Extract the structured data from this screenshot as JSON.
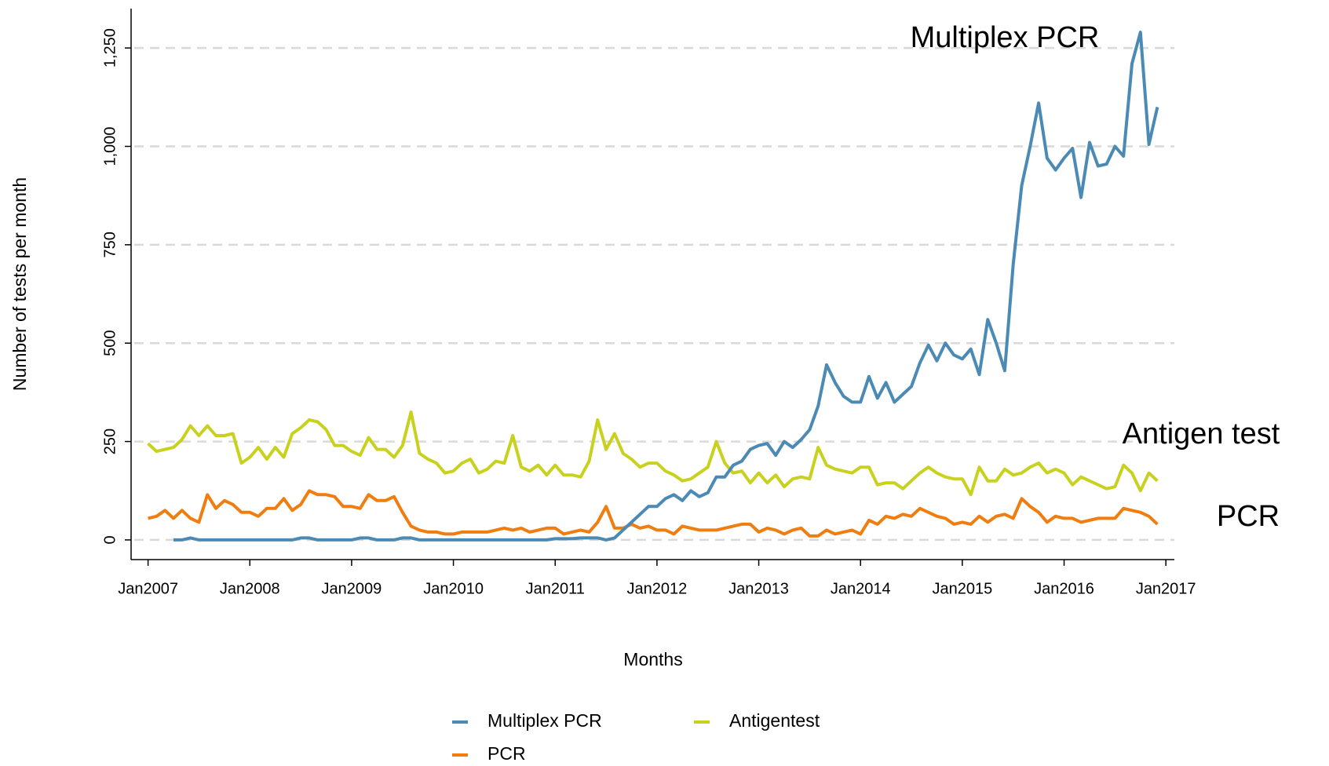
{
  "chart_data": {
    "type": "line",
    "x_label": "Months",
    "y_label": "Number of tests per month",
    "x": [
      "2007-01",
      "2007-02",
      "2007-03",
      "2007-04",
      "2007-05",
      "2007-06",
      "2007-07",
      "2007-08",
      "2007-09",
      "2007-10",
      "2007-11",
      "2007-12",
      "2008-01",
      "2008-02",
      "2008-03",
      "2008-04",
      "2008-05",
      "2008-06",
      "2008-07",
      "2008-08",
      "2008-09",
      "2008-10",
      "2008-11",
      "2008-12",
      "2009-01",
      "2009-02",
      "2009-03",
      "2009-04",
      "2009-05",
      "2009-06",
      "2009-07",
      "2009-08",
      "2009-09",
      "2009-10",
      "2009-11",
      "2009-12",
      "2010-01",
      "2010-02",
      "2010-03",
      "2010-04",
      "2010-05",
      "2010-06",
      "2010-07",
      "2010-08",
      "2010-09",
      "2010-10",
      "2010-11",
      "2010-12",
      "2011-01",
      "2011-02",
      "2011-03",
      "2011-04",
      "2011-05",
      "2011-06",
      "2011-07",
      "2011-08",
      "2011-09",
      "2011-10",
      "2011-11",
      "2011-12",
      "2012-01",
      "2012-02",
      "2012-03",
      "2012-04",
      "2012-05",
      "2012-06",
      "2012-07",
      "2012-08",
      "2012-09",
      "2012-10",
      "2012-11",
      "2012-12",
      "2013-01",
      "2013-02",
      "2013-03",
      "2013-04",
      "2013-05",
      "2013-06",
      "2013-07",
      "2013-08",
      "2013-09",
      "2013-10",
      "2013-11",
      "2013-12",
      "2014-01",
      "2014-02",
      "2014-03",
      "2014-04",
      "2014-05",
      "2014-06",
      "2014-07",
      "2014-08",
      "2014-09",
      "2014-10",
      "2014-11",
      "2014-12",
      "2015-01",
      "2015-02",
      "2015-03",
      "2015-04",
      "2015-05",
      "2015-06",
      "2015-07",
      "2015-08",
      "2015-09",
      "2015-10",
      "2015-11",
      "2015-12",
      "2016-01",
      "2016-02",
      "2016-03",
      "2016-04",
      "2016-05",
      "2016-06",
      "2016-07",
      "2016-08",
      "2016-09",
      "2016-10",
      "2016-11",
      "2016-12"
    ],
    "series": [
      {
        "name": "Multiplex PCR",
        "color": "#4a8ab5",
        "values": [
          null,
          null,
          null,
          0,
          0,
          5,
          0,
          0,
          0,
          0,
          0,
          0,
          0,
          0,
          0,
          0,
          0,
          0,
          5,
          5,
          0,
          0,
          0,
          0,
          0,
          5,
          5,
          0,
          0,
          0,
          5,
          5,
          0,
          0,
          0,
          0,
          0,
          0,
          0,
          0,
          0,
          0,
          0,
          0,
          0,
          0,
          0,
          0,
          3,
          3,
          3,
          5,
          5,
          5,
          0,
          5,
          25,
          45,
          65,
          85,
          85,
          105,
          115,
          100,
          125,
          110,
          120,
          160,
          160,
          190,
          200,
          230,
          240,
          245,
          215,
          250,
          235,
          255,
          280,
          340,
          445,
          400,
          365,
          350,
          350,
          415,
          360,
          400,
          350,
          370,
          390,
          450,
          495,
          455,
          500,
          470,
          460,
          485,
          420,
          560,
          500,
          430,
          700,
          900,
          1000,
          1110,
          970,
          940,
          970,
          995,
          870,
          1010,
          950,
          955,
          1000,
          975,
          1210,
          1290,
          1005,
          1100
        ]
      },
      {
        "name": "PCR",
        "color": "#f07d0f",
        "values": [
          55,
          60,
          75,
          55,
          75,
          55,
          45,
          115,
          80,
          100,
          90,
          70,
          70,
          60,
          80,
          80,
          105,
          75,
          90,
          125,
          115,
          115,
          110,
          85,
          85,
          80,
          115,
          100,
          100,
          110,
          70,
          35,
          25,
          20,
          20,
          15,
          15,
          20,
          20,
          20,
          20,
          25,
          30,
          25,
          30,
          20,
          25,
          30,
          30,
          15,
          20,
          25,
          20,
          45,
          85,
          30,
          30,
          40,
          30,
          35,
          25,
          25,
          15,
          35,
          30,
          25,
          25,
          25,
          30,
          35,
          40,
          40,
          20,
          30,
          25,
          15,
          25,
          30,
          10,
          10,
          25,
          15,
          20,
          25,
          15,
          50,
          40,
          60,
          55,
          65,
          60,
          80,
          70,
          60,
          55,
          40,
          45,
          40,
          60,
          45,
          60,
          65,
          55,
          105,
          85,
          70,
          45,
          60,
          55,
          55,
          45,
          50,
          55,
          55,
          55,
          80,
          75,
          70,
          60,
          40
        ]
      },
      {
        "name": "Antigentest",
        "color": "#c8d21e",
        "values": [
          245,
          225,
          230,
          235,
          255,
          290,
          265,
          290,
          265,
          265,
          270,
          195,
          210,
          235,
          205,
          235,
          210,
          270,
          285,
          305,
          300,
          280,
          240,
          240,
          225,
          215,
          260,
          230,
          230,
          210,
          240,
          325,
          220,
          205,
          195,
          170,
          175,
          195,
          205,
          170,
          180,
          200,
          195,
          265,
          185,
          175,
          190,
          165,
          190,
          165,
          165,
          160,
          200,
          305,
          230,
          270,
          220,
          205,
          185,
          195,
          195,
          175,
          165,
          150,
          155,
          170,
          185,
          250,
          195,
          170,
          175,
          145,
          170,
          145,
          165,
          135,
          155,
          160,
          155,
          235,
          190,
          180,
          175,
          170,
          185,
          185,
          140,
          145,
          145,
          130,
          150,
          170,
          185,
          170,
          160,
          155,
          155,
          115,
          185,
          150,
          150,
          180,
          165,
          170,
          185,
          195,
          170,
          180,
          170,
          140,
          160,
          150,
          140,
          130,
          135,
          190,
          170,
          125,
          170,
          150
        ]
      }
    ],
    "annotations": [
      {
        "text": "Multiplex PCR",
        "color": "#1010c8"
      },
      {
        "text": "Antigen test",
        "color": "#808010"
      },
      {
        "text": "PCR",
        "color": "#ff0000"
      }
    ],
    "xlim": [
      "2006-11",
      "2017-02"
    ],
    "xticks": [
      {
        "value": "2007-01",
        "label": "Jan2007"
      },
      {
        "value": "2008-01",
        "label": "Jan2008"
      },
      {
        "value": "2009-01",
        "label": "Jan2009"
      },
      {
        "value": "2010-01",
        "label": "Jan2010"
      },
      {
        "value": "2011-01",
        "label": "Jan2011"
      },
      {
        "value": "2012-01",
        "label": "Jan2012"
      },
      {
        "value": "2013-01",
        "label": "Jan2013"
      },
      {
        "value": "2014-01",
        "label": "Jan2014"
      },
      {
        "value": "2015-01",
        "label": "Jan2015"
      },
      {
        "value": "2016-01",
        "label": "Jan2016"
      },
      {
        "value": "2017-01",
        "label": "Jan2017"
      }
    ],
    "ylim": [
      -50,
      1350
    ],
    "yticks": [
      0,
      250,
      500,
      750,
      {
        "value": 1000,
        "label": "1,000"
      },
      {
        "value": 1250,
        "label": "1,250"
      }
    ],
    "grid": true,
    "legend": "bottom"
  }
}
